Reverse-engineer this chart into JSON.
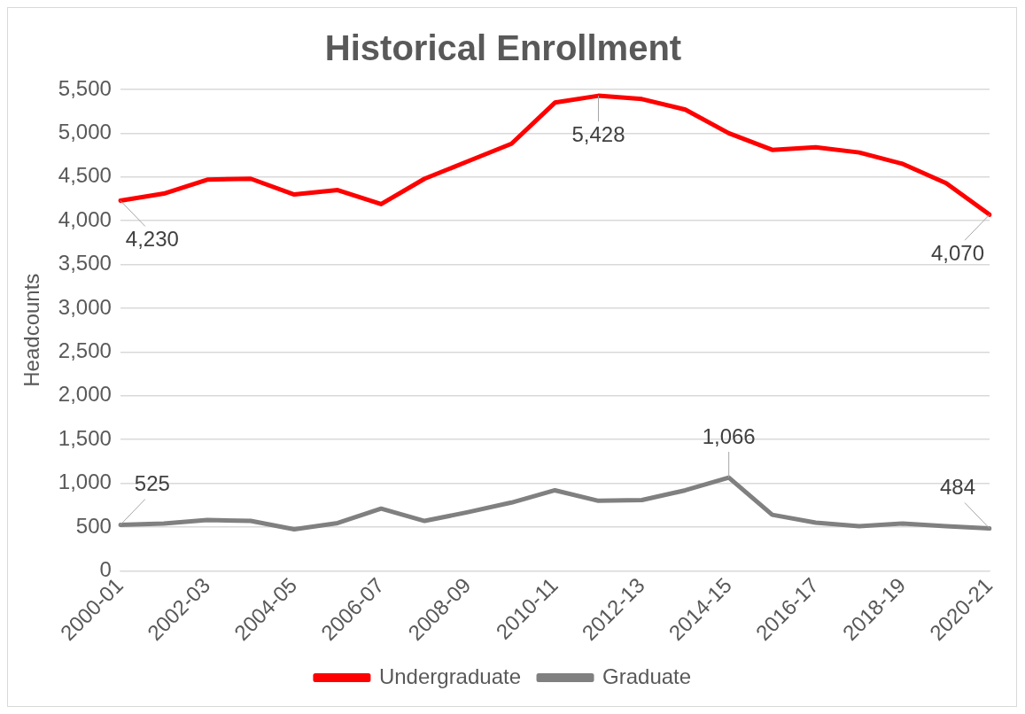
{
  "chart_data": {
    "type": "line",
    "title": "Historical Enrollment",
    "ylabel": "Headcounts",
    "categories": [
      "2000-01",
      null,
      "2002-03",
      null,
      "2004-05",
      null,
      "2006-07",
      null,
      "2008-09",
      null,
      "2010-11",
      null,
      "2012-13",
      null,
      "2014-15",
      null,
      "2016-17",
      null,
      "2018-19",
      null,
      "2020-21"
    ],
    "series": [
      {
        "name": "Undergraduate",
        "color": "#ff0000",
        "values": [
          4230,
          4310,
          4470,
          4480,
          4300,
          4350,
          4190,
          4480,
          4680,
          4880,
          5350,
          5428,
          5390,
          5270,
          5000,
          4810,
          4840,
          4780,
          4650,
          4430,
          4070
        ],
        "value_labels": [
          "4,230",
          null,
          null,
          null,
          null,
          null,
          null,
          null,
          null,
          null,
          null,
          "5,428",
          null,
          null,
          null,
          null,
          null,
          null,
          null,
          null,
          "4,070"
        ]
      },
      {
        "name": "Graduate",
        "color": "#808080",
        "values": [
          525,
          540,
          580,
          570,
          475,
          546,
          710,
          570,
          670,
          780,
          920,
          800,
          808,
          920,
          1066,
          640,
          550,
          510,
          540,
          510,
          484
        ],
        "value_labels": [
          "525",
          null,
          null,
          null,
          null,
          null,
          null,
          null,
          null,
          null,
          null,
          null,
          null,
          null,
          "1,066",
          null,
          null,
          null,
          null,
          null,
          "484"
        ]
      }
    ],
    "ylim": [
      0,
      5500
    ],
    "yticks": [
      0,
      500,
      {
        "value": 1000,
        "label": "1,000"
      },
      {
        "value": 1500,
        "label": "1,500"
      },
      {
        "value": 2000,
        "label": "2,000"
      },
      {
        "value": 2500,
        "label": "2,500"
      },
      {
        "value": 3000,
        "label": "3,000"
      },
      {
        "value": 3500,
        "label": "3,500"
      },
      {
        "value": 4000,
        "label": "4,000"
      },
      {
        "value": 4500,
        "label": "4,500"
      },
      {
        "value": 5000,
        "label": "5,000"
      },
      {
        "value": 5500,
        "label": "5,500"
      }
    ],
    "grid": "y",
    "legend": "bottom",
    "marker": "none",
    "line_style": "solid"
  }
}
